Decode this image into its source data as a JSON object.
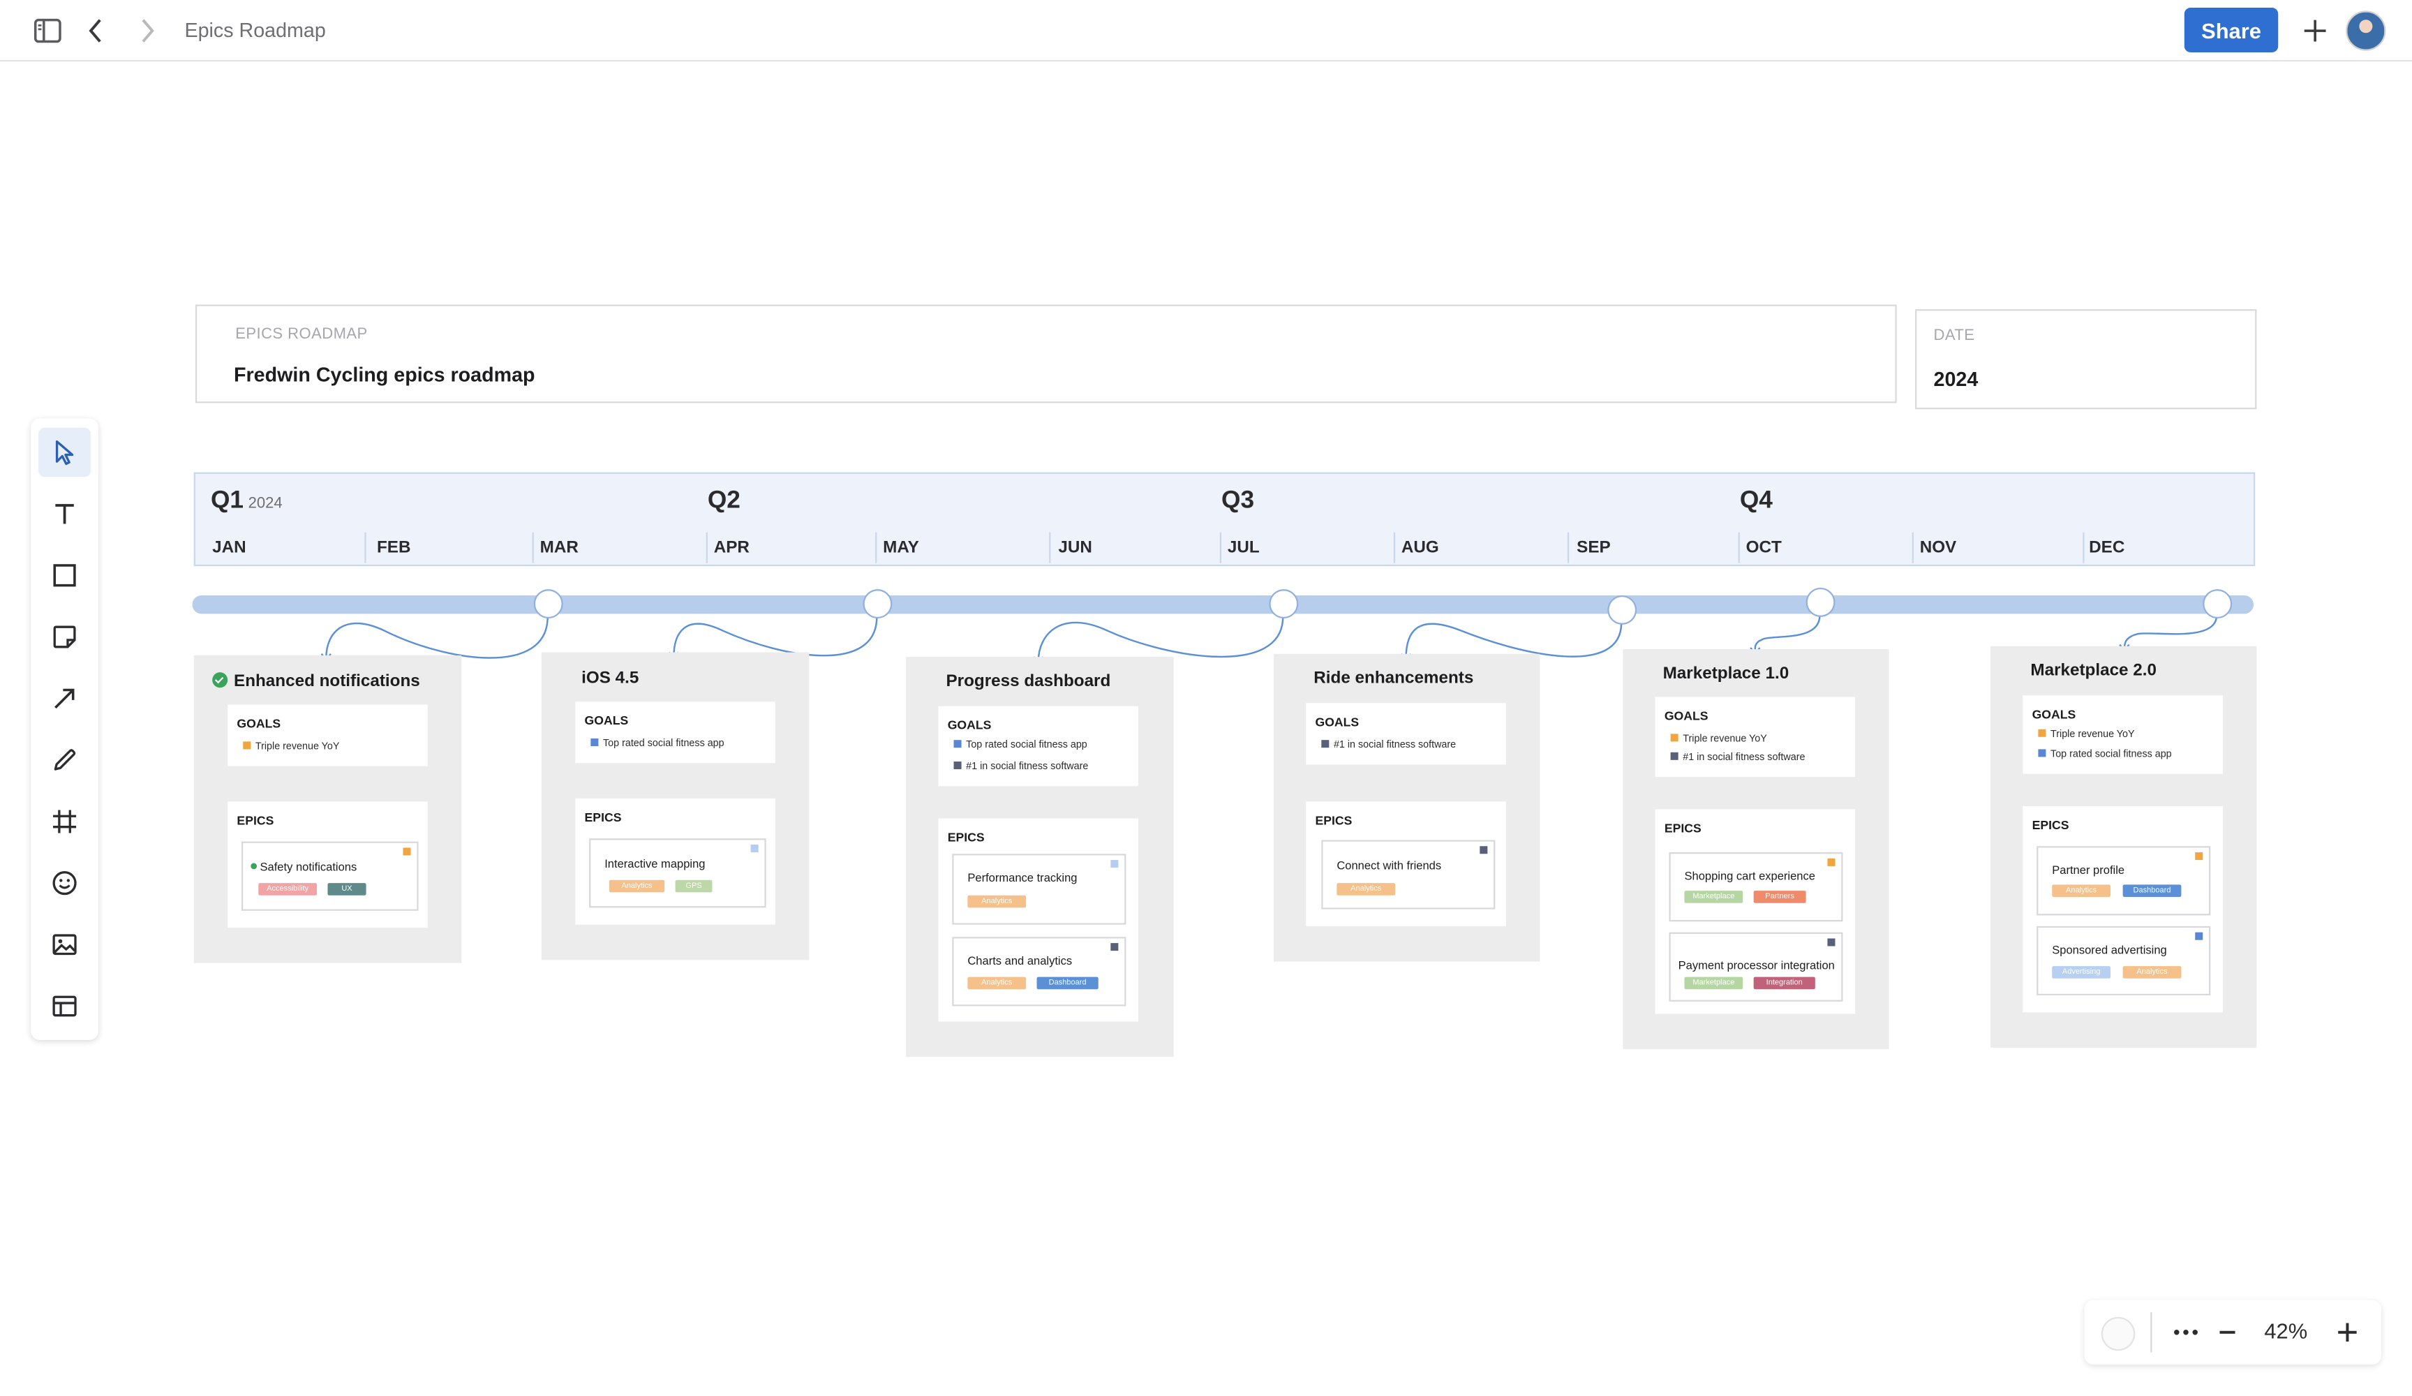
{
  "app": {
    "doc_title": "Epics Roadmap",
    "share_label": "Share"
  },
  "toolbar": {
    "tools": [
      "select",
      "text",
      "rectangle",
      "sticky-note",
      "arrow",
      "pen",
      "frame",
      "emoji",
      "image",
      "table"
    ]
  },
  "header": {
    "title_label": "EPICS ROADMAP",
    "title_value": "Fredwin Cycling epics roadmap",
    "date_label": "DATE",
    "date_value": "2024"
  },
  "timeline": {
    "quarters": [
      {
        "label": "Q1",
        "year": "2024"
      },
      {
        "label": "Q2",
        "year": ""
      },
      {
        "label": "Q3",
        "year": ""
      },
      {
        "label": "Q4",
        "year": ""
      }
    ],
    "months": [
      "JAN",
      "FEB",
      "MAR",
      "APR",
      "MAY",
      "JUN",
      "JUL",
      "AUG",
      "SEP",
      "OCT",
      "NOV",
      "DEC"
    ]
  },
  "colors": {
    "orange_flag": "#f0a640",
    "blue_flag": "#5b86d6",
    "dark_flag": "#5a5f7a",
    "light_blue_flag": "#b5cdf0",
    "tag_accessibility": "#f2a3a3",
    "tag_ux": "#5f8a8a",
    "tag_analytics": "#f5c08a",
    "tag_gps": "#bcd8a6",
    "tag_dashboard": "#5b8fd6",
    "tag_marketplace": "#b5d6a2",
    "tag_partners": "#ef8a6a",
    "tag_integration": "#c0627a",
    "tag_advertising": "#b7cff0"
  },
  "epics": [
    {
      "title": "Enhanced notifications",
      "completed": true,
      "goals_label": "GOALS",
      "goals": [
        {
          "text": "Triple revenue YoY",
          "flag": "orange"
        }
      ],
      "epics_label": "EPICS",
      "items": [
        {
          "name": "Safety notifications",
          "dot": true,
          "flag": "orange",
          "tags": [
            "Accessibility",
            "UX"
          ]
        }
      ]
    },
    {
      "title": "iOS 4.5",
      "completed": false,
      "goals_label": "GOALS",
      "goals": [
        {
          "text": "Top rated social fitness app",
          "flag": "blue"
        }
      ],
      "epics_label": "EPICS",
      "items": [
        {
          "name": "Interactive mapping",
          "flag": "light-blue",
          "tags": [
            "Analytics",
            "GPS"
          ]
        }
      ]
    },
    {
      "title": "Progress dashboard",
      "completed": false,
      "goals_label": "GOALS",
      "goals": [
        {
          "text": "Top rated social fitness app",
          "flag": "blue"
        },
        {
          "text": "#1 in social fitness software",
          "flag": "dark"
        }
      ],
      "epics_label": "EPICS",
      "items": [
        {
          "name": "Performance tracking",
          "flag": "light-blue",
          "tags": [
            "Analytics"
          ]
        },
        {
          "name": "Charts and analytics",
          "flag": "dark",
          "tags": [
            "Analytics",
            "Dashboard"
          ]
        }
      ]
    },
    {
      "title": "Ride enhancements",
      "completed": false,
      "goals_label": "GOALS",
      "goals": [
        {
          "text": "#1 in social fitness software",
          "flag": "dark"
        }
      ],
      "epics_label": "EPICS",
      "items": [
        {
          "name": "Connect with friends",
          "flag": "dark",
          "tags": [
            "Analytics"
          ]
        }
      ]
    },
    {
      "title": "Marketplace 1.0",
      "completed": false,
      "goals_label": "GOALS",
      "goals": [
        {
          "text": "Triple revenue YoY",
          "flag": "orange"
        },
        {
          "text": "#1 in social fitness software",
          "flag": "dark"
        }
      ],
      "epics_label": "EPICS",
      "items": [
        {
          "name": "Shopping cart experience",
          "flag": "orange",
          "tags": [
            "Marketplace",
            "Partners"
          ]
        },
        {
          "name": "Payment processor integration",
          "flag": "dark",
          "tags": [
            "Marketplace",
            "Integration"
          ]
        }
      ]
    },
    {
      "title": "Marketplace 2.0",
      "completed": false,
      "goals_label": "GOALS",
      "goals": [
        {
          "text": "Triple revenue YoY",
          "flag": "orange"
        },
        {
          "text": "Top rated social fitness app",
          "flag": "blue"
        }
      ],
      "epics_label": "EPICS",
      "items": [
        {
          "name": "Partner profile",
          "flag": "orange",
          "tags": [
            "Analytics",
            "Dashboard"
          ]
        },
        {
          "name": "Sponsored advertising",
          "flag": "blue",
          "tags": [
            "Advertising",
            "Analytics"
          ]
        }
      ]
    }
  ],
  "zoom": {
    "level": "42%",
    "more_label": "...",
    "minus_label": "−",
    "plus_label": "+"
  }
}
